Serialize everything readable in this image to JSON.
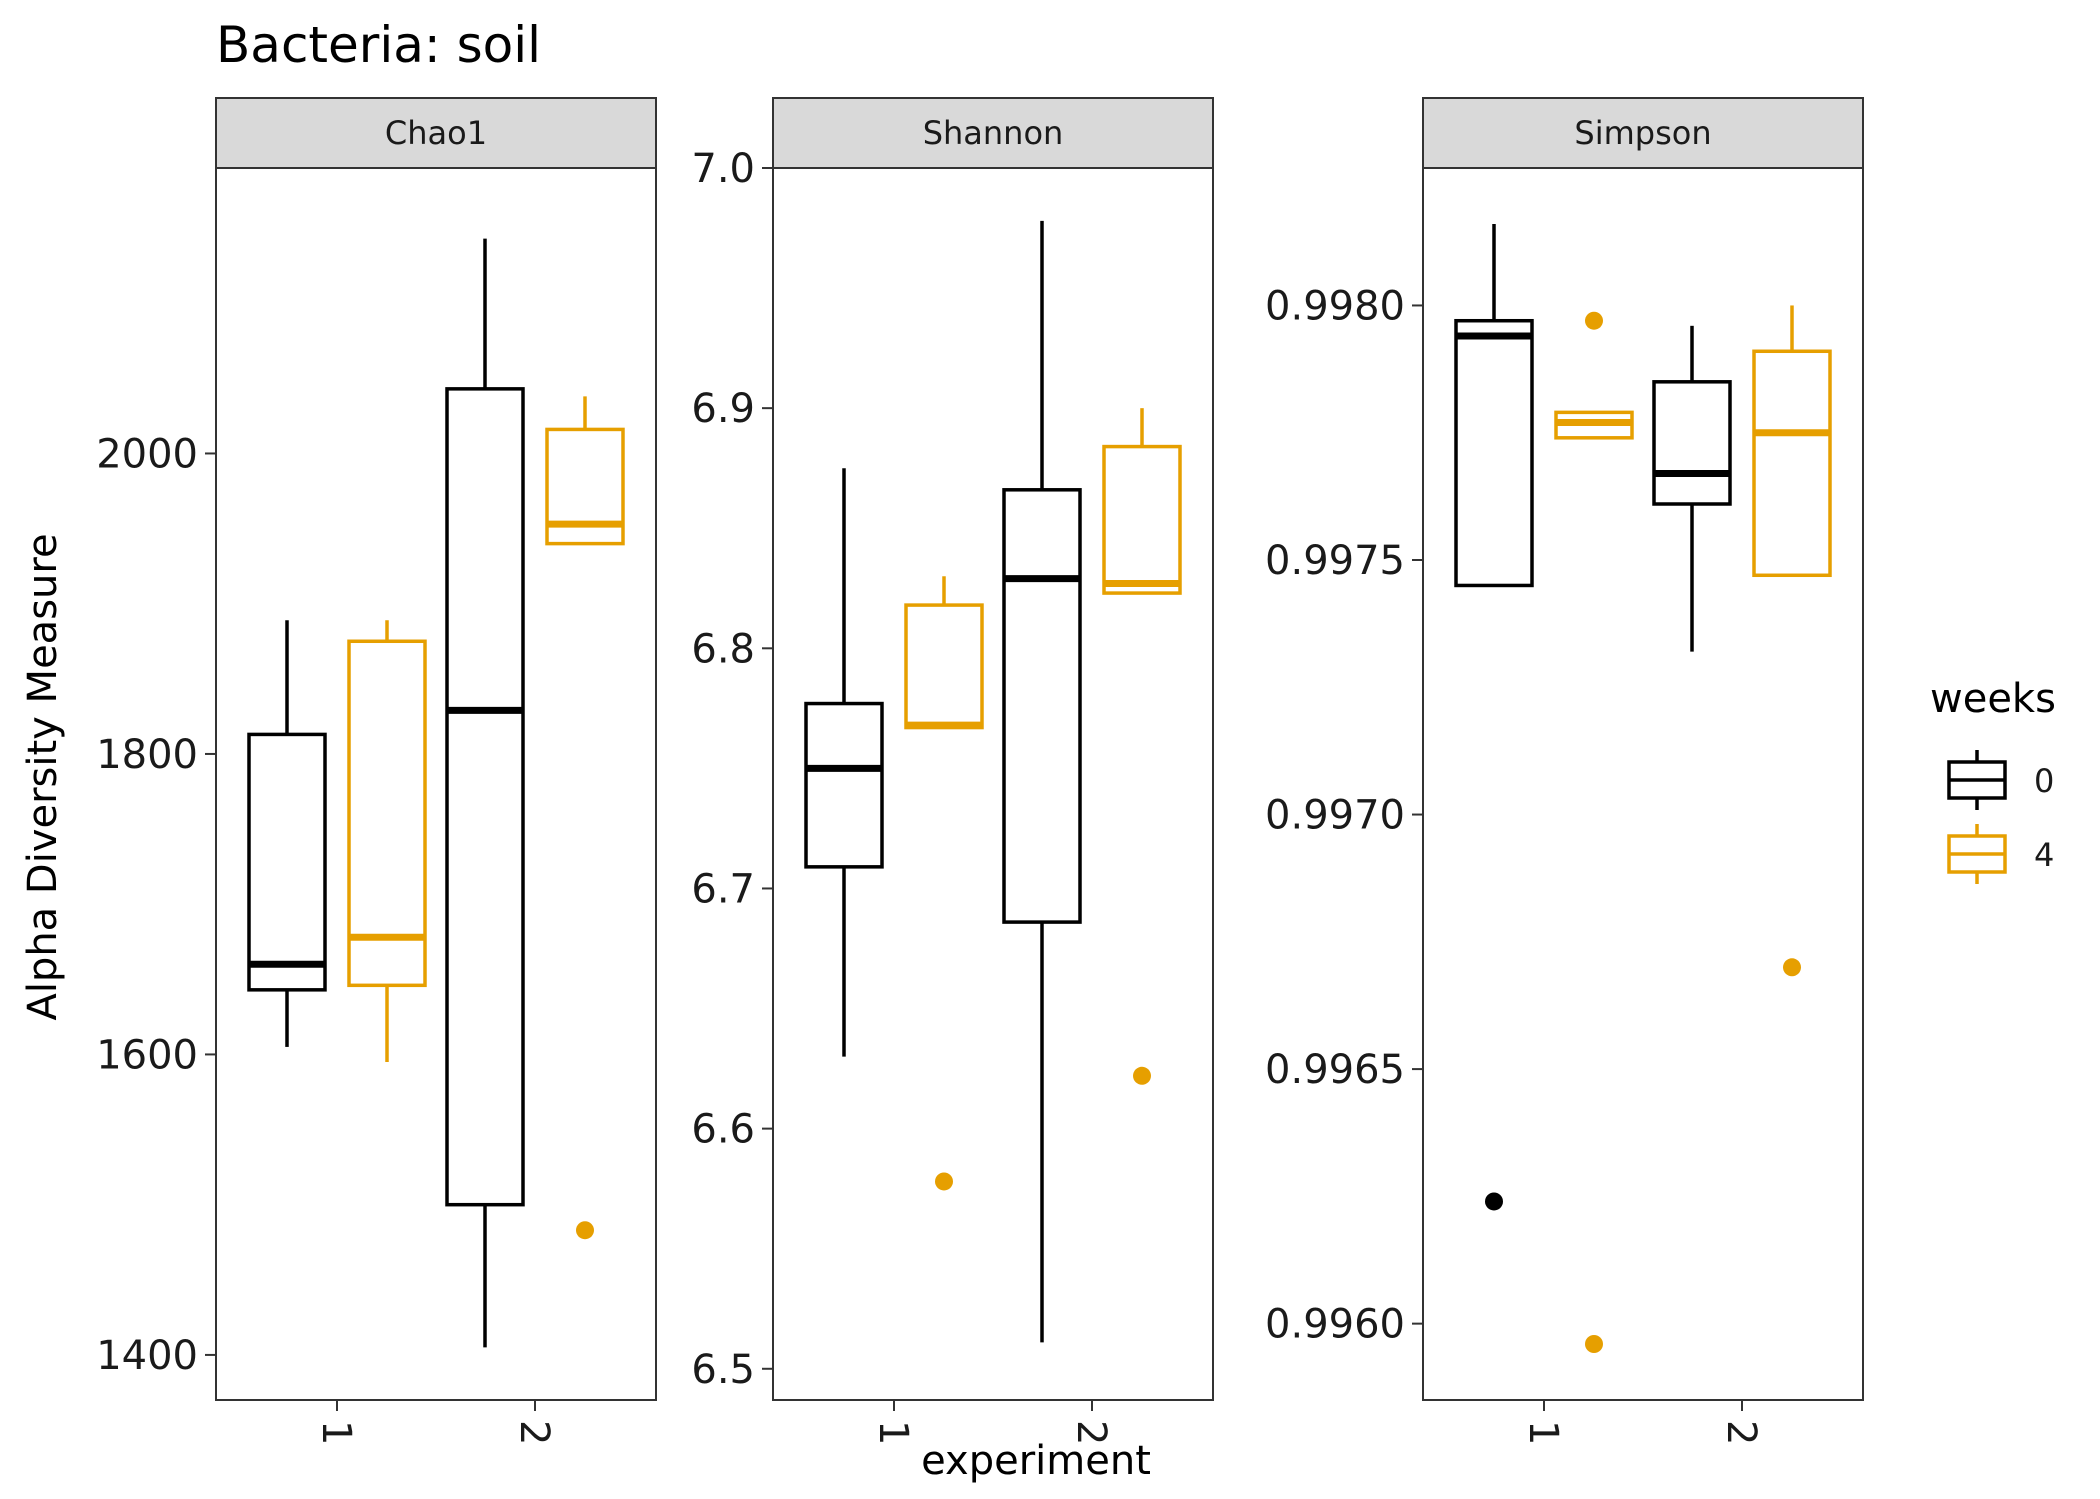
{
  "chart_data": {
    "type": "box",
    "title": "Bacteria: soil",
    "xlabel": "experiment",
    "ylabel": "Alpha Diversity Measure",
    "categories": [
      "1",
      "2"
    ],
    "legend": {
      "title": "weeks",
      "placement": "right",
      "entries": [
        {
          "label": "0",
          "color": "#000000"
        },
        {
          "label": "4",
          "color": "#E69F00"
        }
      ]
    },
    "grid": false,
    "panels": [
      {
        "name": "Chao1",
        "ylim": [
          1370,
          2190
        ],
        "yticks": [
          1400,
          1600,
          1800,
          2000
        ],
        "tick_labels": [
          "1400",
          "1600",
          "1800",
          "2000"
        ],
        "series": [
          {
            "name": "0",
            "boxes": [
              {
                "category": "1",
                "whisker_low": 1605,
                "q1": 1643,
                "median": 1660,
                "q3": 1813,
                "whisker_high": 1889,
                "outliers": []
              },
              {
                "category": "2",
                "whisker_low": 1405,
                "q1": 1500,
                "median": 1829,
                "q3": 2043,
                "whisker_high": 2143,
                "outliers": []
              }
            ]
          },
          {
            "name": "4",
            "boxes": [
              {
                "category": "1",
                "whisker_low": 1595,
                "q1": 1646,
                "median": 1678,
                "q3": 1875,
                "whisker_high": 1889,
                "outliers": []
              },
              {
                "category": "2",
                "whisker_low": 1940,
                "q1": 1940,
                "median": 1953,
                "q3": 2016,
                "whisker_high": 2038,
                "outliers": [
                  1483
                ]
              }
            ]
          }
        ]
      },
      {
        "name": "Shannon",
        "ylim": [
          6.487,
          7.0
        ],
        "yticks": [
          6.5,
          6.6,
          6.7,
          6.8,
          6.9,
          7.0
        ],
        "tick_labels": [
          "6.5",
          "6.6",
          "6.7",
          "6.8",
          "6.9",
          "7.0"
        ],
        "series": [
          {
            "name": "0",
            "boxes": [
              {
                "category": "1",
                "whisker_low": 6.63,
                "q1": 6.709,
                "median": 6.75,
                "q3": 6.777,
                "whisker_high": 6.875,
                "outliers": []
              },
              {
                "category": "2",
                "whisker_low": 6.511,
                "q1": 6.686,
                "median": 6.829,
                "q3": 6.866,
                "whisker_high": 6.978,
                "outliers": []
              }
            ]
          },
          {
            "name": "4",
            "boxes": [
              {
                "category": "1",
                "whisker_low": 6.767,
                "q1": 6.767,
                "median": 6.768,
                "q3": 6.818,
                "whisker_high": 6.83,
                "outliers": [
                  6.578
                ]
              },
              {
                "category": "2",
                "whisker_low": 6.823,
                "q1": 6.823,
                "median": 6.827,
                "q3": 6.884,
                "whisker_high": 6.9,
                "outliers": [
                  6.622
                ]
              }
            ]
          }
        ]
      },
      {
        "name": "Simpson",
        "ylim": [
          0.99585,
          0.99827
        ],
        "yticks": [
          0.996,
          0.9965,
          0.997,
          0.9975,
          0.998
        ],
        "tick_labels": [
          "0.9960",
          "0.9965",
          "0.9970",
          "0.9975",
          "0.9980"
        ],
        "series": [
          {
            "name": "0",
            "boxes": [
              {
                "category": "1",
                "whisker_low": 0.99745,
                "q1": 0.99745,
                "median": 0.99794,
                "q3": 0.99797,
                "whisker_high": 0.99816,
                "outliers": [
                  0.99624
                ]
              },
              {
                "category": "2",
                "whisker_low": 0.99732,
                "q1": 0.99761,
                "median": 0.99767,
                "q3": 0.99785,
                "whisker_high": 0.99796,
                "outliers": []
              }
            ]
          },
          {
            "name": "4",
            "boxes": [
              {
                "category": "1",
                "whisker_low": 0.99774,
                "q1": 0.99774,
                "median": 0.99777,
                "q3": 0.99779,
                "whisker_high": 0.99779,
                "outliers": [
                  0.99797,
                  0.99596
                ]
              },
              {
                "category": "2",
                "whisker_low": 0.99747,
                "q1": 0.99747,
                "median": 0.99775,
                "q3": 0.99791,
                "whisker_high": 0.998,
                "outliers": [
                  0.9967
                ]
              }
            ]
          }
        ]
      }
    ]
  }
}
